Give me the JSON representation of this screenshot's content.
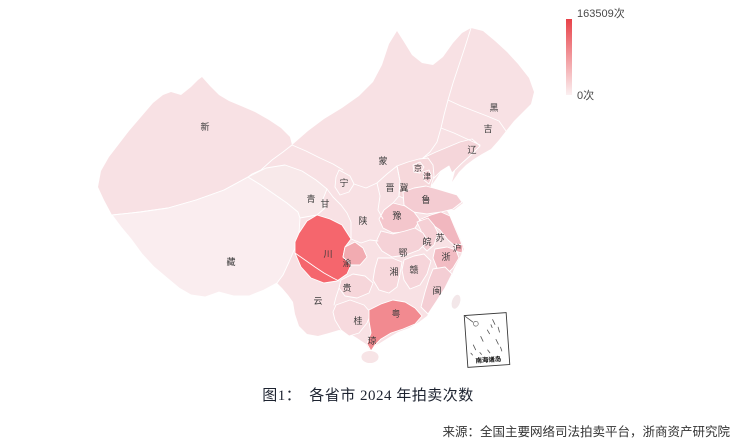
{
  "figure": {
    "caption": "图1：　各省市 2024 年拍卖次数",
    "source": "来源：全国主要网络司法拍卖平台，浙商资产研究院"
  },
  "inset": {
    "label": "南海诸岛"
  },
  "chart_data": {
    "type": "heatmap",
    "subtype": "china-province-choropleth",
    "title": "图1：　各省市 2024 年拍卖次数",
    "unit": "次",
    "base_land_color": "#f8e1e4",
    "colorbar": {
      "max_value": 163509,
      "min_value": 0,
      "max_label": "163509次",
      "min_label": "0次",
      "max_color": "#e84249",
      "min_color": "#fbf0f1",
      "position": "top-right"
    },
    "regions": [
      {
        "id": "xizang",
        "label": "藏",
        "fill": "#faedef",
        "estimated_share_of_max": 0.03
      },
      {
        "id": "qinghai",
        "label": "青",
        "fill": "#f8e9ea",
        "estimated_share_of_max": 0.06
      },
      {
        "id": "liaoning",
        "label": "辽",
        "fill": "#f5d6da",
        "estimated_share_of_max": 0.18
      },
      {
        "id": "hebei",
        "label": "冀",
        "fill": "#f6d8db",
        "estimated_share_of_max": 0.18
      },
      {
        "id": "beijing",
        "label": "京",
        "fill": "#f6dbde",
        "estimated_share_of_max": 0.13
      },
      {
        "id": "tianjin",
        "label": "津",
        "fill": "#f4cfd4",
        "estimated_share_of_max": 0.22
      },
      {
        "id": "shandong",
        "label": "鲁",
        "fill": "#f4ccd2",
        "estimated_share_of_max": 0.25
      },
      {
        "id": "henan",
        "label": "豫",
        "fill": "#f4c6cc",
        "estimated_share_of_max": 0.28
      },
      {
        "id": "jiangsu",
        "label": "苏",
        "fill": "#f1b7bf",
        "estimated_share_of_max": 0.33
      },
      {
        "id": "anhui",
        "label": "皖",
        "fill": "#f5d0d5",
        "estimated_share_of_max": 0.16
      },
      {
        "id": "shanghai",
        "label": "沪",
        "fill": "#f0a9b2",
        "estimated_share_of_max": 0.38
      },
      {
        "id": "zhejiang",
        "label": "浙",
        "fill": "#f2bcc3",
        "estimated_share_of_max": 0.3
      },
      {
        "id": "hubei",
        "label": "鄂",
        "fill": "#f5d2d7",
        "estimated_share_of_max": 0.17
      },
      {
        "id": "hunan",
        "label": "湘",
        "fill": "#f7d8dc",
        "estimated_share_of_max": 0.15
      },
      {
        "id": "jiangxi",
        "label": "赣",
        "fill": "#f6d5da",
        "estimated_share_of_max": 0.16
      },
      {
        "id": "fujian",
        "label": "闽",
        "fill": "#f4ced4",
        "estimated_share_of_max": 0.16
      },
      {
        "id": "guizhou",
        "label": "贵",
        "fill": "#f6d6da",
        "estimated_share_of_max": 0.15
      },
      {
        "id": "guangxi",
        "label": "桂",
        "fill": "#f7dade",
        "estimated_share_of_max": 0.13
      },
      {
        "id": "guangdong",
        "label": "粤",
        "fill": "#f28a90",
        "estimated_share_of_max": 0.55
      },
      {
        "id": "sichuan",
        "label": "川",
        "fill": "#f5666d",
        "estimated_share_of_max": 1.0
      },
      {
        "id": "chongqing",
        "label": "渝",
        "fill": "#f2abb1",
        "estimated_share_of_max": 0.35
      },
      {
        "id": "hainan",
        "label": "琼",
        "fill": "#f7e4e6",
        "estimated_share_of_max": 0.07
      },
      {
        "id": "xinjiang",
        "label": "新",
        "fill": "#f6e2e4",
        "estimated_share_of_max": 0.09
      },
      {
        "id": "gansu",
        "label": "甘",
        "fill": "#f7e3e5",
        "estimated_share_of_max": 0.09
      },
      {
        "id": "ningxia",
        "label": "宁",
        "fill": "#f8e5e7",
        "estimated_share_of_max": 0.08
      },
      {
        "id": "neimenggu",
        "label": "蒙",
        "fill": "#f7e1e3",
        "estimated_share_of_max": 0.09
      },
      {
        "id": "shanxi",
        "label": "晋",
        "fill": "#f8e2e4",
        "estimated_share_of_max": 0.1
      },
      {
        "id": "shaanxi",
        "label": "陕",
        "fill": "#f7dee1",
        "estimated_share_of_max": 0.12
      },
      {
        "id": "heilongjiang",
        "label": "黑",
        "fill": "#f7e1e3",
        "estimated_share_of_max": 0.1
      },
      {
        "id": "jilin",
        "label": "吉",
        "fill": "#f7dfe1",
        "estimated_share_of_max": 0.11
      },
      {
        "id": "yunnan",
        "label": "云",
        "fill": "#f8dfe2",
        "estimated_share_of_max": 0.12
      }
    ]
  }
}
